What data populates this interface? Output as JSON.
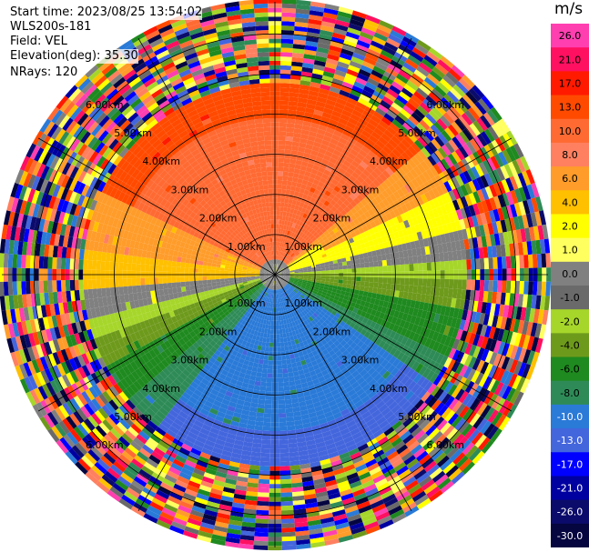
{
  "header": {
    "start_time": "Start time: 2023/08/25 13:54:02",
    "instrument": "WLS200s-181",
    "field": "Field: VEL",
    "elevation": "Elevation(deg): 35.30",
    "nrays": "NRays: 120"
  },
  "colorbar": {
    "unit": "m/s",
    "ticks": [
      "26.0",
      "21.0",
      "17.0",
      "13.0",
      "10.0",
      "8.0",
      "6.0",
      "4.0",
      "2.0",
      "1.0",
      "0.0",
      "-1.0",
      "-2.0",
      "-4.0",
      "-6.0",
      "-8.0",
      "-10.0",
      "-13.0",
      "-17.0",
      "-21.0",
      "-26.0",
      "-30.0"
    ],
    "colors": [
      "#ff3fb0",
      "#ff1060",
      "#ff1a00",
      "#ff4a00",
      "#ff6a33",
      "#ff8060",
      "#ff9c2a",
      "#ffc000",
      "#ffff00",
      "#ffff60",
      "#808080",
      "#6a6a6a",
      "#a6d62a",
      "#6e9a1c",
      "#1f8a1f",
      "#2e8b57",
      "#2a7ad8",
      "#4466dd",
      "#0000ff",
      "#0000a0",
      "#0b0b6b",
      "#050540"
    ]
  },
  "chart_data": {
    "type": "ppi",
    "field": "VEL",
    "units": "m/s",
    "nrays": 120,
    "range_rings_km": [
      1.0,
      2.0,
      3.0,
      4.0,
      5.0,
      6.0
    ],
    "range_ring_labels": [
      "1.00km",
      "2.00km",
      "3.00km",
      "4.00km",
      "5.00km",
      "6.00km"
    ],
    "max_range_km": 6.8,
    "radial_lines_deg": [
      0,
      30,
      60,
      90,
      120,
      150,
      180,
      210,
      240,
      270,
      300,
      330
    ],
    "velocity_pattern": {
      "north_sector_band_1_to_3_8km_ms": 10.0,
      "south_sector_band_1_to_3_8km_ms": -10.0,
      "west_north_band_ms": 4.0,
      "east_north_band_ms": 2.0,
      "near_zero_band_ms": 0.0,
      "noise_beyond_km": 4.8
    }
  }
}
